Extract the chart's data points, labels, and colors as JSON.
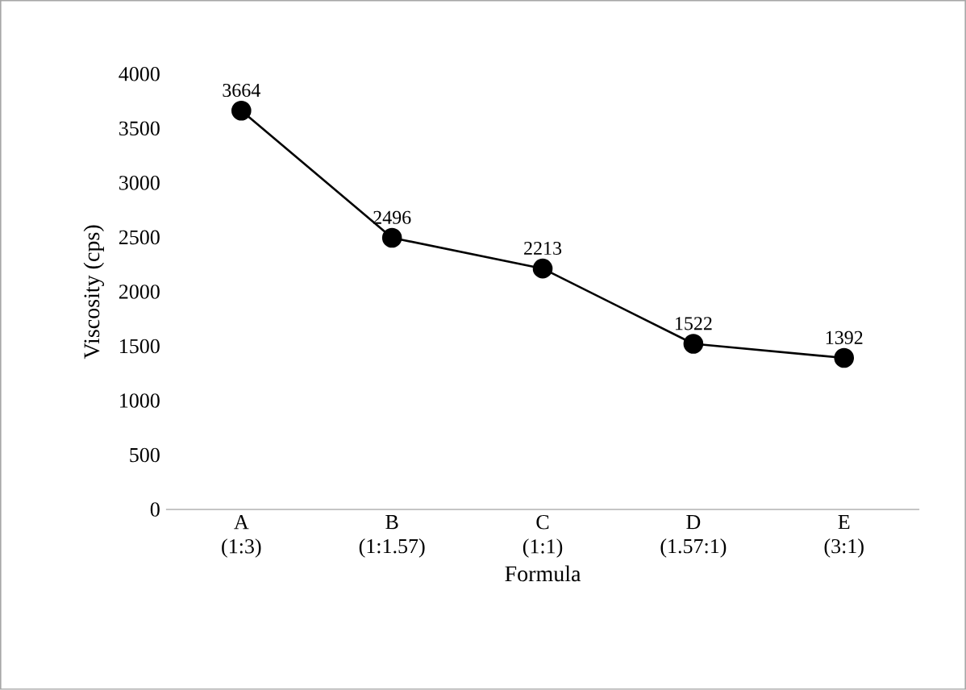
{
  "chart_data": {
    "type": "line",
    "xlabel": "Formula",
    "ylabel": "Viscosity  (cps)",
    "categories": [
      "A\n(1:3)",
      "B\n(1:1.57)",
      "C\n(1:1)",
      "D\n(1.57:1)",
      "E\n(3:1)"
    ],
    "series": [
      {
        "color": "#000000",
        "values": [
          3664,
          2496,
          2213,
          1522,
          1392
        ]
      }
    ],
    "ylim": [
      0,
      4000
    ],
    "yticks": [
      0,
      500,
      1000,
      1500,
      2000,
      2500,
      3000,
      3500,
      4000
    ],
    "grid": false,
    "marker": "circle",
    "line_style": "solid",
    "data_labels": true
  }
}
